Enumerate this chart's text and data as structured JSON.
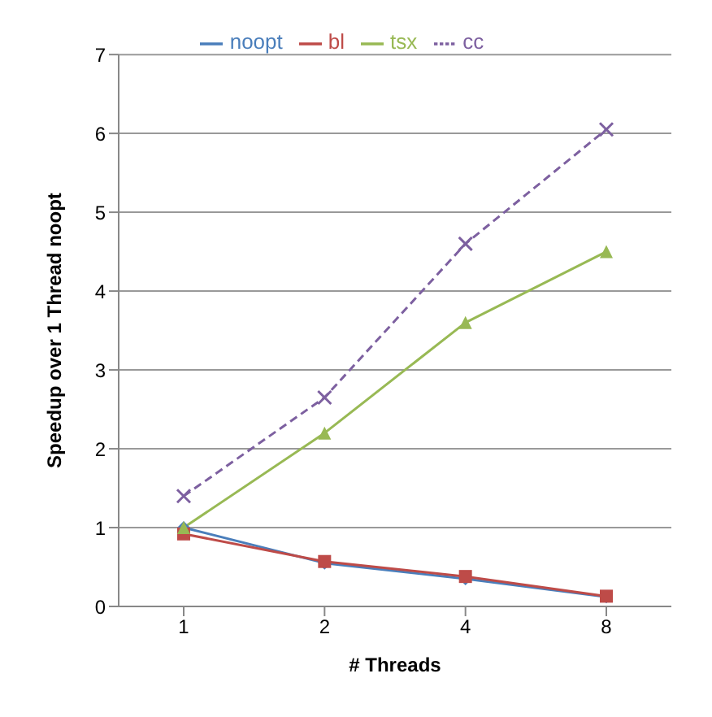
{
  "chart_data": {
    "type": "line",
    "xlabel": "# Threads",
    "ylabel": "Speedup over 1 Thread noopt",
    "categories": [
      "1",
      "2",
      "4",
      "8"
    ],
    "series": [
      {
        "name": "noopt",
        "color": "#4a7ebb",
        "marker": "diamond",
        "line_style": "solid",
        "values": [
          1.0,
          0.55,
          0.35,
          0.12
        ]
      },
      {
        "name": "bl",
        "color": "#be4b48",
        "marker": "square",
        "line_style": "solid",
        "values": [
          0.92,
          0.57,
          0.38,
          0.13
        ]
      },
      {
        "name": "tsx",
        "color": "#98b954",
        "marker": "triangle",
        "line_style": "solid",
        "values": [
          1.0,
          2.2,
          3.6,
          4.5
        ]
      },
      {
        "name": "cc",
        "color": "#7d60a0",
        "marker": "cross",
        "line_style": "dashed",
        "values": [
          1.4,
          2.65,
          4.6,
          6.05
        ]
      }
    ],
    "ylim": [
      0,
      7
    ],
    "yticks": [
      0,
      1,
      2,
      3,
      4,
      5,
      6,
      7
    ],
    "grid": "y",
    "legend": "top"
  }
}
